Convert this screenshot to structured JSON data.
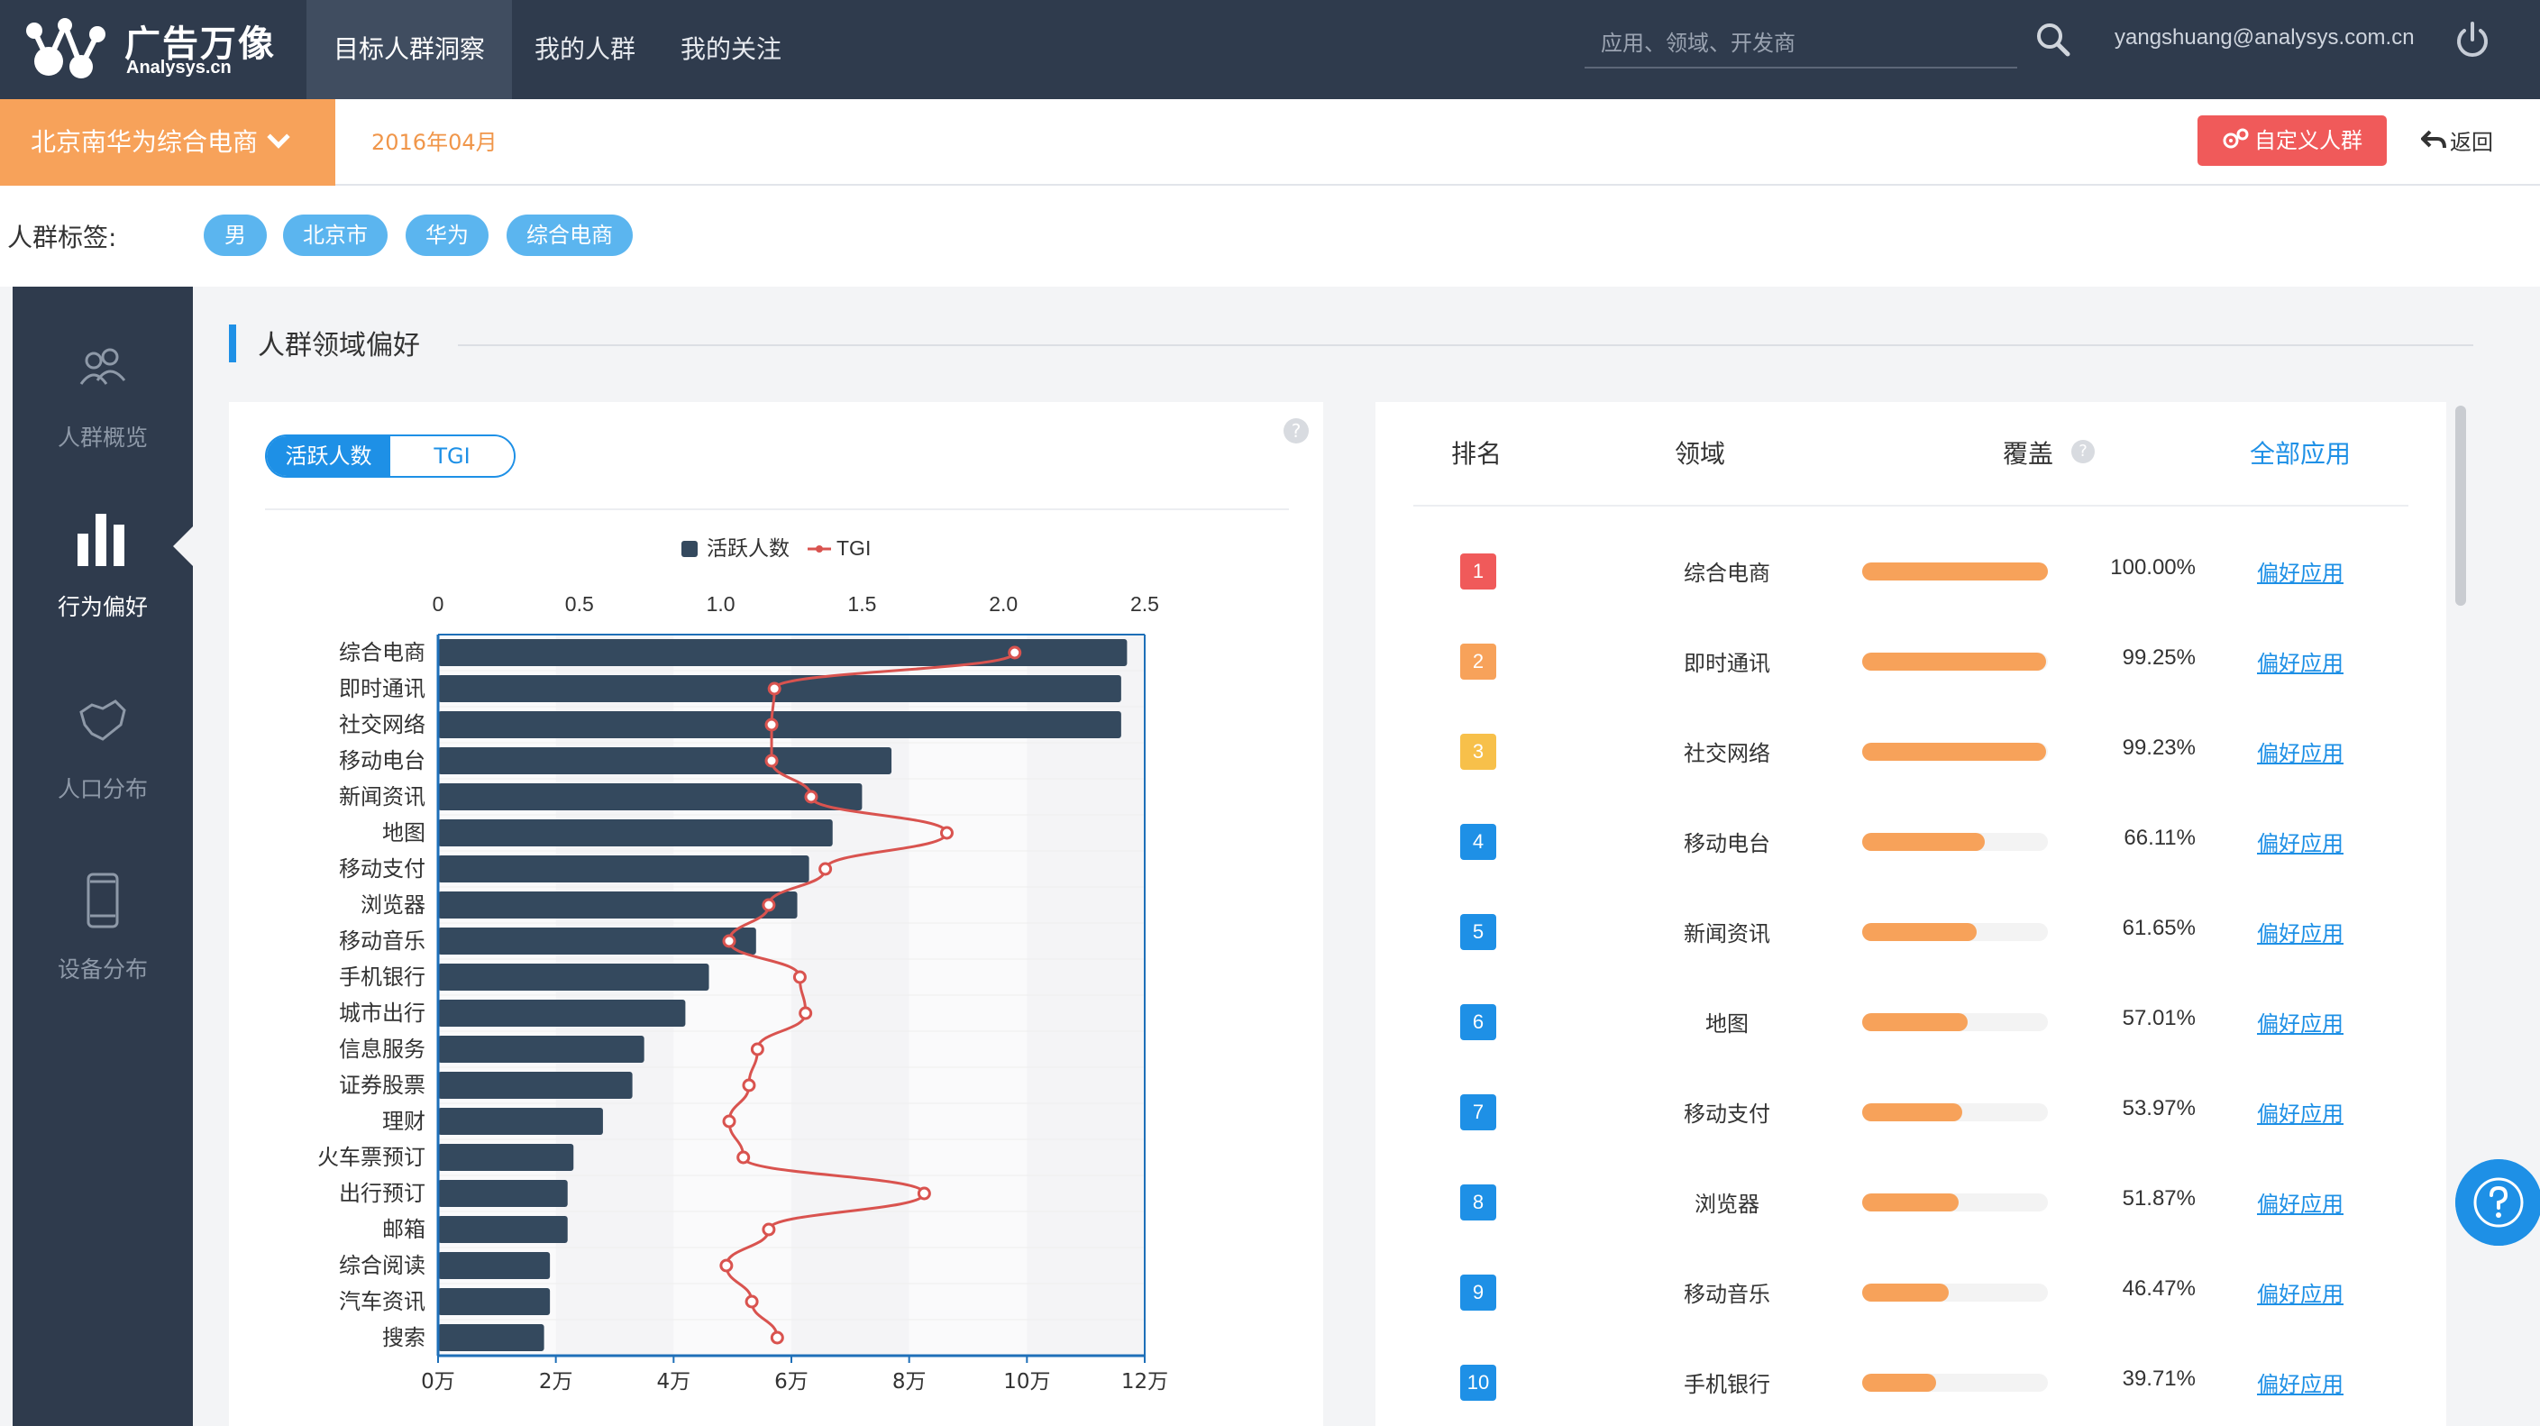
{
  "brand": {
    "name": "广告万像",
    "sub": "Analysys.cn"
  },
  "nav": [
    {
      "label": "目标人群洞察",
      "active": true
    },
    {
      "label": "我的人群",
      "active": false
    },
    {
      "label": "我的关注",
      "active": false
    }
  ],
  "search": {
    "placeholder": "应用、领域、开发商",
    "value": ""
  },
  "user": {
    "email": "yangshuang@analysys.com.cn"
  },
  "subbar": {
    "crowd": "北京南华为综合电商",
    "date": "2016年04月",
    "custom_btn": "自定义人群",
    "back": "返回"
  },
  "tags": {
    "label": "人群标签:",
    "items": [
      "男",
      "北京市",
      "华为",
      "综合电商"
    ]
  },
  "sidebar": [
    {
      "label": "人群概览",
      "icon": "people-icon",
      "active": false
    },
    {
      "label": "行为偏好",
      "icon": "bar-chart-icon",
      "active": true
    },
    {
      "label": "人口分布",
      "icon": "map-icon",
      "active": false
    },
    {
      "label": "设备分布",
      "icon": "phone-icon",
      "active": false
    }
  ],
  "section_title": "人群领域偏好",
  "toggle": {
    "left": "活跃人数",
    "right": "TGI"
  },
  "colors": {
    "accent": "#1e90e6",
    "orange": "#f7a25a",
    "bar": "#34495e",
    "line": "#d9534f",
    "red_button": "#f05a5a"
  },
  "chart_data": {
    "type": "bar",
    "orientation": "horizontal",
    "categories": [
      "综合电商",
      "即时通讯",
      "社交网络",
      "移动电台",
      "新闻资讯",
      "地图",
      "移动支付",
      "浏览器",
      "移动音乐",
      "手机银行",
      "城市出行",
      "信息服务",
      "证券股票",
      "理财",
      "火车票预订",
      "出行预订",
      "邮箱",
      "综合阅读",
      "汽车资讯",
      "搜索"
    ],
    "legend": [
      "活跃人数",
      "TGI"
    ],
    "series": [
      {
        "name": "活跃人数",
        "type": "bar",
        "axis": "bottom",
        "values": [
          11.7,
          11.6,
          11.6,
          7.7,
          7.2,
          6.7,
          6.3,
          6.1,
          5.4,
          4.6,
          4.2,
          3.5,
          3.3,
          2.8,
          2.3,
          2.2,
          2.2,
          1.9,
          1.9,
          1.8
        ]
      },
      {
        "name": "TGI",
        "type": "line",
        "axis": "top",
        "values": [
          2.04,
          1.19,
          1.18,
          1.18,
          1.32,
          1.8,
          1.37,
          1.17,
          1.03,
          1.28,
          1.3,
          1.13,
          1.1,
          1.03,
          1.08,
          1.72,
          1.17,
          1.02,
          1.11,
          1.2
        ]
      }
    ],
    "bottom_axis": {
      "min": 0,
      "max": 12,
      "ticks": [
        0,
        2,
        4,
        6,
        8,
        10,
        12
      ],
      "tick_labels": [
        "0万",
        "2万",
        "4万",
        "6万",
        "8万",
        "10万",
        "12万"
      ]
    },
    "top_axis": {
      "min": 0,
      "max": 2.5,
      "ticks": [
        0,
        0.5,
        1.0,
        1.5,
        2.0,
        2.5
      ],
      "tick_labels": [
        "0",
        "0.5",
        "1.0",
        "1.5",
        "2.0",
        "2.5"
      ]
    },
    "legend_position": "top-center"
  },
  "table": {
    "headers": {
      "rank": "排名",
      "domain": "领域",
      "coverage": "覆盖",
      "all_apps": "全部应用"
    },
    "link_label": "偏好应用",
    "rows": [
      {
        "rank": "1",
        "domain": "综合电商",
        "pct": "100.00%",
        "value": 100.0,
        "color": "#f05a5a"
      },
      {
        "rank": "2",
        "domain": "即时通讯",
        "pct": "99.25%",
        "value": 99.25,
        "color": "#f7a25a"
      },
      {
        "rank": "3",
        "domain": "社交网络",
        "pct": "99.23%",
        "value": 99.23,
        "color": "#f7c04a"
      },
      {
        "rank": "4",
        "domain": "移动电台",
        "pct": "66.11%",
        "value": 66.11,
        "color": "#1e90e6"
      },
      {
        "rank": "5",
        "domain": "新闻资讯",
        "pct": "61.65%",
        "value": 61.65,
        "color": "#1e90e6"
      },
      {
        "rank": "6",
        "domain": "地图",
        "pct": "57.01%",
        "value": 57.01,
        "color": "#1e90e6"
      },
      {
        "rank": "7",
        "domain": "移动支付",
        "pct": "53.97%",
        "value": 53.97,
        "color": "#1e90e6"
      },
      {
        "rank": "8",
        "domain": "浏览器",
        "pct": "51.87%",
        "value": 51.87,
        "color": "#1e90e6"
      },
      {
        "rank": "9",
        "domain": "移动音乐",
        "pct": "46.47%",
        "value": 46.47,
        "color": "#1e90e6"
      },
      {
        "rank": "10",
        "domain": "手机银行",
        "pct": "39.71%",
        "value": 39.71,
        "color": "#1e90e6"
      }
    ]
  }
}
